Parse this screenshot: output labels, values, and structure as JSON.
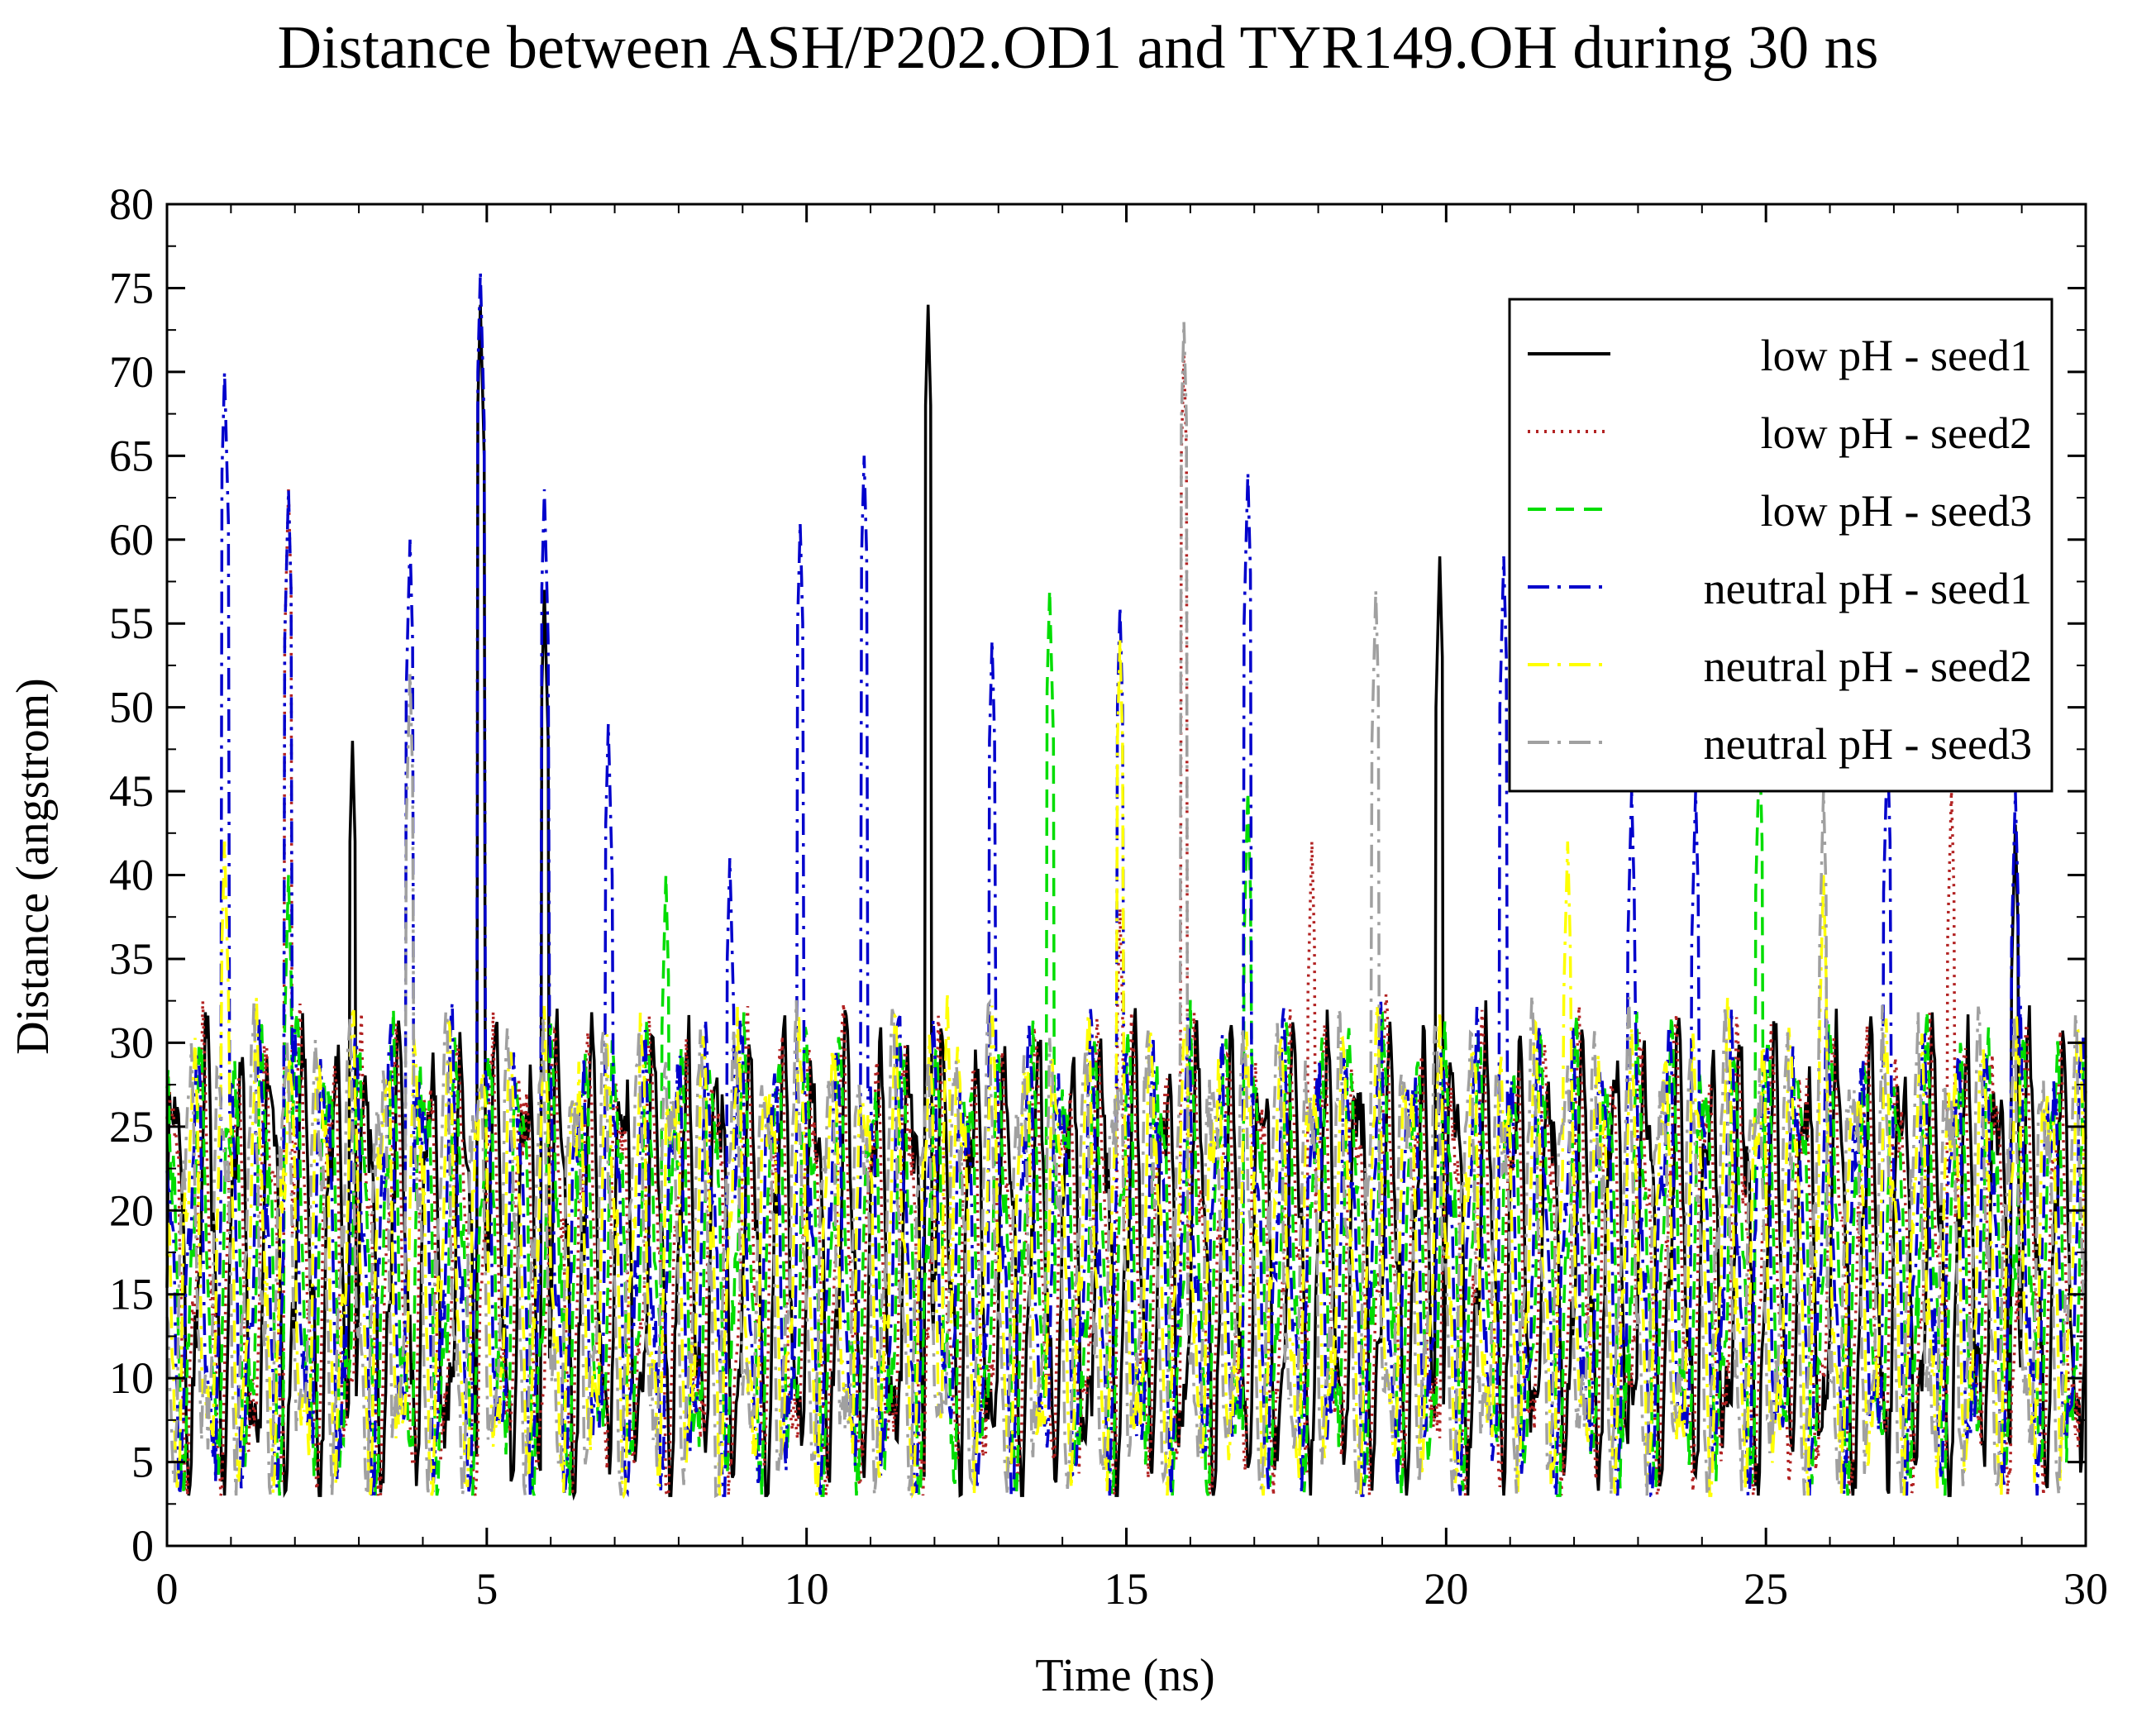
{
  "chart_data": {
    "type": "line",
    "title": "Distance between ASH/P202.OD1 and TYR149.OH during 30 ns",
    "xlabel": "Time (ns)",
    "ylabel": "Distance (angstrom)",
    "xlim": [
      0,
      30
    ],
    "ylim": [
      0,
      80
    ],
    "x_ticks": [
      0,
      5,
      10,
      15,
      20,
      25,
      30
    ],
    "y_ticks": [
      0,
      5,
      10,
      15,
      20,
      25,
      30,
      35,
      40,
      45,
      50,
      55,
      60,
      65,
      70,
      75,
      80
    ],
    "grid": false,
    "legend_position": "top-right",
    "series": [
      {
        "name": "low pH - seed1",
        "color": "#000000",
        "dash": "solid",
        "base_phase": 0.0,
        "peaks": [
          [
            2.9,
            48
          ],
          [
            4.9,
            74
          ],
          [
            5.9,
            57
          ],
          [
            11.9,
            74
          ],
          [
            19.9,
            59
          ],
          [
            28.9,
            43
          ]
        ]
      },
      {
        "name": "low pH - seed2",
        "color": "#b22222",
        "dash": "dot",
        "base_phase": 0.7,
        "peaks": [
          [
            1.9,
            63
          ],
          [
            15.9,
            71
          ],
          [
            17.9,
            42
          ],
          [
            27.9,
            45
          ],
          [
            14.9,
            38
          ]
        ]
      },
      {
        "name": "low pH - seed3",
        "color": "#00dd00",
        "dash": "dash",
        "base_phase": 1.4,
        "peaks": [
          [
            7.8,
            40
          ],
          [
            13.8,
            57
          ],
          [
            24.9,
            48
          ],
          [
            1.9,
            40
          ],
          [
            16.9,
            45
          ]
        ]
      },
      {
        "name": "neutral pH - seed1",
        "color": "#0000cc",
        "dash": "dashdot",
        "base_phase": 2.1,
        "peaks": [
          [
            0.9,
            70
          ],
          [
            1.9,
            63
          ],
          [
            3.8,
            60
          ],
          [
            4.9,
            76
          ],
          [
            5.9,
            63
          ],
          [
            6.9,
            49
          ],
          [
            8.8,
            41
          ],
          [
            9.9,
            61
          ],
          [
            10.9,
            65
          ],
          [
            12.9,
            54
          ],
          [
            14.9,
            56
          ],
          [
            16.9,
            64
          ],
          [
            20.9,
            59
          ],
          [
            22.9,
            45
          ],
          [
            23.9,
            45
          ],
          [
            26.9,
            48
          ],
          [
            28.9,
            45
          ]
        ]
      },
      {
        "name": "neutral pH - seed2",
        "color": "#ffff00",
        "dash": "dashdot",
        "base_phase": 2.8,
        "peaks": [
          [
            0.9,
            42
          ],
          [
            12.2,
            33
          ],
          [
            14.9,
            54
          ],
          [
            21.9,
            42
          ],
          [
            25.9,
            40
          ]
        ]
      },
      {
        "name": "neutral pH - seed3",
        "color": "#a0a0a0",
        "dash": "dashdot",
        "base_phase": 3.5,
        "peaks": [
          [
            15.9,
            73
          ],
          [
            18.9,
            57
          ],
          [
            25.9,
            45
          ],
          [
            3.8,
            52
          ]
        ]
      }
    ]
  }
}
